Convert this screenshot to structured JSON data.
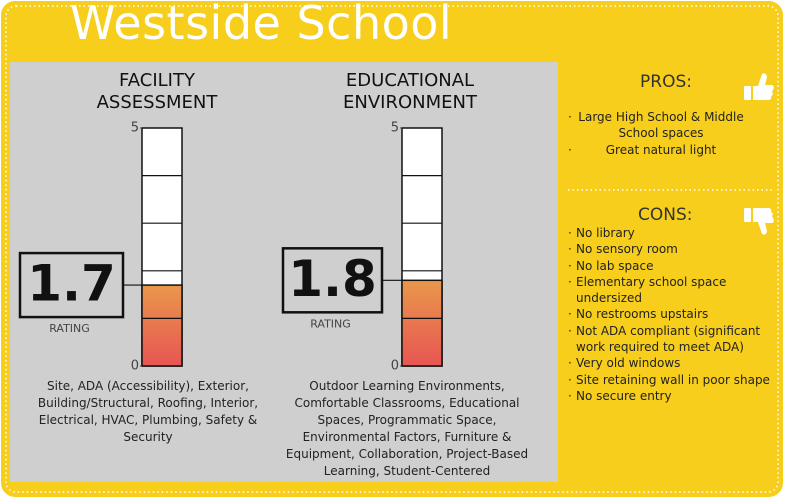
{
  "title": "Westside School",
  "chart_data": [
    {
      "type": "gauge",
      "title": "FACILITY ASSESSMENT",
      "value": 1.7,
      "value_caption": "RATING",
      "ylim": [
        0,
        5
      ],
      "yticks": [
        0,
        5
      ],
      "grid": true,
      "description": "Site, ADA (Accessibility), Exterior, Building/Structural, Roofing, Interior, Electrical, HVAC, Plumbing, Safety & Security"
    },
    {
      "type": "gauge",
      "title": "EDUCATIONAL ENVIRONMENT",
      "value": 1.8,
      "value_caption": "RATING",
      "ylim": [
        0,
        5
      ],
      "yticks": [
        0,
        5
      ],
      "grid": true,
      "description": "Outdoor Learning Environments, Comfortable Classrooms, Educational Spaces, Programmatic Space, Environmental Factors, Furniture & Equipment, Collaboration, Project-Based Learning, Student-Centered"
    }
  ],
  "pros": {
    "heading": "PROS:",
    "items": [
      "Large High School & Middle School spaces",
      "Great natural light"
    ]
  },
  "cons": {
    "heading": "CONS:",
    "items": [
      "No library",
      "No sensory room",
      "No lab space",
      "Elementary school space undersized",
      "No restrooms upstairs",
      "Not ADA compliant (significant work required to meet ADA)",
      "Very old windows",
      "Site retaining wall in poor shape",
      "No secure entry"
    ]
  }
}
